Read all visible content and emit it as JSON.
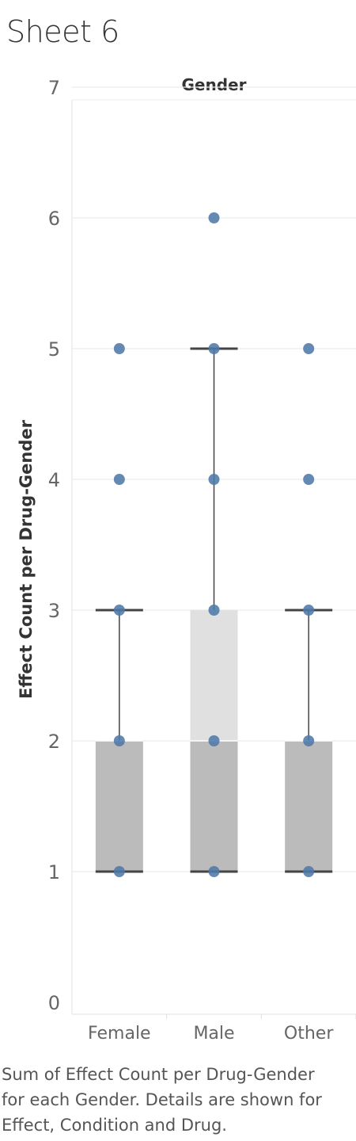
{
  "title": "Sheet 6",
  "caption_lines": [
    "Sum of Effect Count per Drug-Gender",
    "for each Gender.  Details are shown for",
    "Effect, Condition and Drug."
  ],
  "colors": {
    "point": "#4e79a7",
    "box_lower": "#bbbbbb",
    "box_upper": "#e0e0e0",
    "whisker": "#444444",
    "grid": "#ececec",
    "axis_text": "#666666",
    "title_text": "#333333"
  },
  "chart_data": {
    "type": "box",
    "title": "",
    "header": "Gender",
    "ylabel": "Effect Count per Drug-Gender",
    "xlabel": "",
    "ylim": [
      0,
      7
    ],
    "yticks": [
      0,
      1,
      2,
      3,
      4,
      5,
      6,
      7
    ],
    "grid": true,
    "categories": [
      "Female",
      "Male",
      "Other"
    ],
    "boxes": [
      {
        "category": "Female",
        "whisker_low": 1,
        "q1": 1,
        "median": 2,
        "q3": 2,
        "whisker_high": 3
      },
      {
        "category": "Male",
        "whisker_low": 1,
        "q1": 1,
        "median": 2,
        "q3": 3,
        "whisker_high": 5
      },
      {
        "category": "Other",
        "whisker_low": 1,
        "q1": 1,
        "median": 2,
        "q3": 2,
        "whisker_high": 3
      }
    ],
    "points": [
      {
        "category": "Female",
        "values": [
          1,
          2,
          3,
          4,
          5
        ]
      },
      {
        "category": "Male",
        "values": [
          1,
          2,
          3,
          4,
          5,
          6
        ]
      },
      {
        "category": "Other",
        "values": [
          1,
          2,
          3,
          4,
          5
        ]
      }
    ]
  }
}
